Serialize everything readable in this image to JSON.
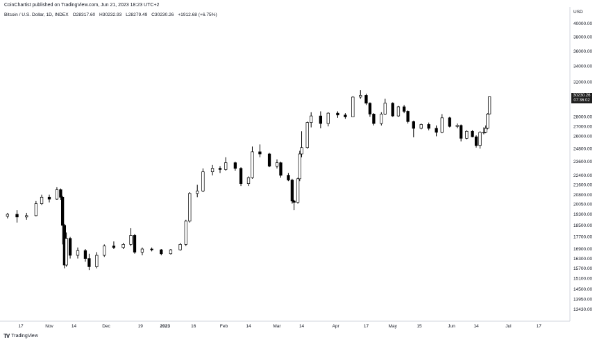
{
  "header": {
    "published": "CoinChartist published on TradingView.com, Jun 21, 2023 18:23 UTC+2",
    "symbol": "Bitcoin / U.S. Dollar, 1D, INDEX",
    "open": "O28317.60",
    "high": "H30232.93",
    "low": "L28279.49",
    "close": "C30230.26",
    "change": "+1912.68 (+6.75%)"
  },
  "currency": "USD",
  "last_price": {
    "price": "30230.26",
    "countdown": "07:36:02"
  },
  "brand": {
    "logo": "TV",
    "name": "TradingView"
  },
  "colors": {
    "candle_up_fill": "#ffffff",
    "candle_down_fill": "#000000",
    "wick": "#000000",
    "axis_text": "#131722",
    "label_bg": "#1e1e1e"
  },
  "chart_data": {
    "type": "candlestick",
    "title": "",
    "xlabel": "",
    "ylabel": "",
    "log_scale": true,
    "ylim": [
      13000,
      41500
    ],
    "y_ticks": [
      "40000.00",
      "38000.00",
      "36000.00",
      "34000.00",
      "32000.00",
      "28000.00",
      "27000.00",
      "26000.00",
      "24800.00",
      "23600.00",
      "22400.00",
      "21600.00",
      "20800.00",
      "20050.00",
      "19300.00",
      "18500.00",
      "17700.00",
      "16900.00",
      "16300.00",
      "15700.00",
      "15100.00",
      "14500.00",
      "13950.00",
      "13430.00"
    ],
    "x_ticks": [
      {
        "label": "17",
        "date": "2022-10-17",
        "bold": false
      },
      {
        "label": "Nov",
        "date": "2022-11-01",
        "bold": false
      },
      {
        "label": "14",
        "date": "2022-11-14",
        "bold": false
      },
      {
        "label": "Dec",
        "date": "2022-12-01",
        "bold": false
      },
      {
        "label": "19",
        "date": "2022-12-19",
        "bold": false
      },
      {
        "label": "2023",
        "date": "2023-01-01",
        "bold": true
      },
      {
        "label": "16",
        "date": "2023-01-16",
        "bold": false
      },
      {
        "label": "Feb",
        "date": "2023-02-01",
        "bold": false
      },
      {
        "label": "14",
        "date": "2023-02-14",
        "bold": false
      },
      {
        "label": "Mar",
        "date": "2023-03-01",
        "bold": false
      },
      {
        "label": "14",
        "date": "2023-03-14",
        "bold": false
      },
      {
        "label": "Apr",
        "date": "2023-04-01",
        "bold": false
      },
      {
        "label": "17",
        "date": "2023-04-17",
        "bold": false
      },
      {
        "label": "May",
        "date": "2023-05-01",
        "bold": false
      },
      {
        "label": "15",
        "date": "2023-05-15",
        "bold": false
      },
      {
        "label": "Jun",
        "date": "2023-06-01",
        "bold": false
      },
      {
        "label": "14",
        "date": "2023-06-14",
        "bold": false
      },
      {
        "label": "Jul",
        "date": "2023-07-01",
        "bold": false
      },
      {
        "label": "17",
        "date": "2023-07-17",
        "bold": false
      }
    ],
    "candles": [
      {
        "date": "2022-10-10",
        "open": 19150,
        "high": 19400,
        "low": 19000,
        "close": 19300
      },
      {
        "date": "2022-10-15",
        "open": 19300,
        "high": 19600,
        "low": 18700,
        "close": 19100
      },
      {
        "date": "2022-10-20",
        "open": 19100,
        "high": 19400,
        "low": 18900,
        "close": 19200
      },
      {
        "date": "2022-10-25",
        "open": 19200,
        "high": 20300,
        "low": 19150,
        "close": 20100
      },
      {
        "date": "2022-10-28",
        "open": 20100,
        "high": 20800,
        "low": 20000,
        "close": 20600
      },
      {
        "date": "2022-11-01",
        "open": 20600,
        "high": 20800,
        "low": 20200,
        "close": 20450
      },
      {
        "date": "2022-11-05",
        "open": 20450,
        "high": 21400,
        "low": 20400,
        "close": 21200
      },
      {
        "date": "2022-11-07",
        "open": 21200,
        "high": 21300,
        "low": 20400,
        "close": 20600
      },
      {
        "date": "2022-11-08",
        "open": 20600,
        "high": 20700,
        "low": 17200,
        "close": 18500
      },
      {
        "date": "2022-11-09",
        "open": 18500,
        "high": 18600,
        "low": 15700,
        "close": 15900
      },
      {
        "date": "2022-11-10",
        "open": 15900,
        "high": 18000,
        "low": 15800,
        "close": 17600
      },
      {
        "date": "2022-11-12",
        "open": 17600,
        "high": 17700,
        "low": 16300,
        "close": 16500
      },
      {
        "date": "2022-11-16",
        "open": 16500,
        "high": 17000,
        "low": 16300,
        "close": 16800
      },
      {
        "date": "2022-11-20",
        "open": 16800,
        "high": 16900,
        "low": 16100,
        "close": 16300
      },
      {
        "date": "2022-11-22",
        "open": 16300,
        "high": 16600,
        "low": 15600,
        "close": 15800
      },
      {
        "date": "2022-11-26",
        "open": 15800,
        "high": 16700,
        "low": 15700,
        "close": 16500
      },
      {
        "date": "2022-11-30",
        "open": 16500,
        "high": 17200,
        "low": 16400,
        "close": 17100
      },
      {
        "date": "2022-12-05",
        "open": 17100,
        "high": 17400,
        "low": 16900,
        "close": 17000
      },
      {
        "date": "2022-12-10",
        "open": 17000,
        "high": 17300,
        "low": 16900,
        "close": 17200
      },
      {
        "date": "2022-12-14",
        "open": 17200,
        "high": 18300,
        "low": 17100,
        "close": 17800
      },
      {
        "date": "2022-12-16",
        "open": 17800,
        "high": 17900,
        "low": 16600,
        "close": 16700
      },
      {
        "date": "2022-12-20",
        "open": 16700,
        "high": 17000,
        "low": 16500,
        "close": 16900
      },
      {
        "date": "2022-12-25",
        "open": 16900,
        "high": 17000,
        "low": 16750,
        "close": 16850
      },
      {
        "date": "2022-12-30",
        "open": 16850,
        "high": 16900,
        "low": 16500,
        "close": 16600
      },
      {
        "date": "2023-01-04",
        "open": 16600,
        "high": 16900,
        "low": 16550,
        "close": 16850
      },
      {
        "date": "2023-01-09",
        "open": 16850,
        "high": 17300,
        "low": 16800,
        "close": 17200
      },
      {
        "date": "2023-01-12",
        "open": 17200,
        "high": 18900,
        "low": 17100,
        "close": 18800
      },
      {
        "date": "2023-01-14",
        "open": 18800,
        "high": 21000,
        "low": 18700,
        "close": 20900
      },
      {
        "date": "2023-01-18",
        "open": 20900,
        "high": 21600,
        "low": 20600,
        "close": 21100
      },
      {
        "date": "2023-01-21",
        "open": 21100,
        "high": 23000,
        "low": 21000,
        "close": 22700
      },
      {
        "date": "2023-01-26",
        "open": 22700,
        "high": 23300,
        "low": 22400,
        "close": 23000
      },
      {
        "date": "2023-01-30",
        "open": 23000,
        "high": 23200,
        "low": 22600,
        "close": 22900
      },
      {
        "date": "2023-02-02",
        "open": 22900,
        "high": 24000,
        "low": 22800,
        "close": 23500
      },
      {
        "date": "2023-02-07",
        "open": 23500,
        "high": 23600,
        "low": 22800,
        "close": 23000
      },
      {
        "date": "2023-02-10",
        "open": 23000,
        "high": 23100,
        "low": 21500,
        "close": 21700
      },
      {
        "date": "2023-02-14",
        "open": 21700,
        "high": 22300,
        "low": 21500,
        "close": 22200
      },
      {
        "date": "2023-02-16",
        "open": 22200,
        "high": 25000,
        "low": 22100,
        "close": 24500
      },
      {
        "date": "2023-02-20",
        "open": 24500,
        "high": 25200,
        "low": 24000,
        "close": 24300
      },
      {
        "date": "2023-02-25",
        "open": 24300,
        "high": 24400,
        "low": 23100,
        "close": 23200
      },
      {
        "date": "2023-03-01",
        "open": 23200,
        "high": 23800,
        "low": 23000,
        "close": 23500
      },
      {
        "date": "2023-03-03",
        "open": 23500,
        "high": 23600,
        "low": 22200,
        "close": 22400
      },
      {
        "date": "2023-03-07",
        "open": 22400,
        "high": 22600,
        "low": 21900,
        "close": 22000
      },
      {
        "date": "2023-03-09",
        "open": 22000,
        "high": 22100,
        "low": 20100,
        "close": 20300
      },
      {
        "date": "2023-03-10",
        "open": 20300,
        "high": 20400,
        "low": 19600,
        "close": 20200
      },
      {
        "date": "2023-03-12",
        "open": 20200,
        "high": 22200,
        "low": 20100,
        "close": 22100
      },
      {
        "date": "2023-03-13",
        "open": 22100,
        "high": 24600,
        "low": 21900,
        "close": 24300
      },
      {
        "date": "2023-03-14",
        "open": 24300,
        "high": 26500,
        "low": 24000,
        "close": 24900
      },
      {
        "date": "2023-03-17",
        "open": 24900,
        "high": 27500,
        "low": 24800,
        "close": 27400
      },
      {
        "date": "2023-03-19",
        "open": 27400,
        "high": 28500,
        "low": 26900,
        "close": 28100
      },
      {
        "date": "2023-03-24",
        "open": 28100,
        "high": 28600,
        "low": 26800,
        "close": 27300
      },
      {
        "date": "2023-03-28",
        "open": 27300,
        "high": 28500,
        "low": 27000,
        "close": 28400
      },
      {
        "date": "2023-04-02",
        "open": 28400,
        "high": 28600,
        "low": 27900,
        "close": 28200
      },
      {
        "date": "2023-04-06",
        "open": 28200,
        "high": 28400,
        "low": 27800,
        "close": 28000
      },
      {
        "date": "2023-04-10",
        "open": 28000,
        "high": 30300,
        "low": 28000,
        "close": 30200
      },
      {
        "date": "2023-04-14",
        "open": 30200,
        "high": 31000,
        "low": 30000,
        "close": 30400
      },
      {
        "date": "2023-04-17",
        "open": 30400,
        "high": 30600,
        "low": 29300,
        "close": 29500
      },
      {
        "date": "2023-04-19",
        "open": 29500,
        "high": 29600,
        "low": 28000,
        "close": 28300
      },
      {
        "date": "2023-04-21",
        "open": 28300,
        "high": 28400,
        "low": 27100,
        "close": 27300
      },
      {
        "date": "2023-04-25",
        "open": 27300,
        "high": 28500,
        "low": 27100,
        "close": 28300
      },
      {
        "date": "2023-04-27",
        "open": 28300,
        "high": 30000,
        "low": 28200,
        "close": 29500
      },
      {
        "date": "2023-05-01",
        "open": 29500,
        "high": 29600,
        "low": 28000,
        "close": 28100
      },
      {
        "date": "2023-05-04",
        "open": 28100,
        "high": 29200,
        "low": 28000,
        "close": 29100
      },
      {
        "date": "2023-05-07",
        "open": 29100,
        "high": 29300,
        "low": 28400,
        "close": 28600
      },
      {
        "date": "2023-05-09",
        "open": 28600,
        "high": 28700,
        "low": 27300,
        "close": 27500
      },
      {
        "date": "2023-05-12",
        "open": 27500,
        "high": 27600,
        "low": 25900,
        "close": 26800
      },
      {
        "date": "2023-05-16",
        "open": 26800,
        "high": 27300,
        "low": 26700,
        "close": 27200
      },
      {
        "date": "2023-05-20",
        "open": 27200,
        "high": 27400,
        "low": 26600,
        "close": 26800
      },
      {
        "date": "2023-05-24",
        "open": 26800,
        "high": 27100,
        "low": 26000,
        "close": 26400
      },
      {
        "date": "2023-05-27",
        "open": 26400,
        "high": 28300,
        "low": 26300,
        "close": 27900
      },
      {
        "date": "2023-05-31",
        "open": 27900,
        "high": 28000,
        "low": 26900,
        "close": 27000
      },
      {
        "date": "2023-06-04",
        "open": 27000,
        "high": 27300,
        "low": 26800,
        "close": 27100
      },
      {
        "date": "2023-06-06",
        "open": 27100,
        "high": 27200,
        "low": 25500,
        "close": 25800
      },
      {
        "date": "2023-06-09",
        "open": 25800,
        "high": 26600,
        "low": 25700,
        "close": 26500
      },
      {
        "date": "2023-06-12",
        "open": 26500,
        "high": 26600,
        "low": 25900,
        "close": 25950
      },
      {
        "date": "2023-06-14",
        "open": 25950,
        "high": 26100,
        "low": 24900,
        "close": 25100
      },
      {
        "date": "2023-06-16",
        "open": 25100,
        "high": 26500,
        "low": 24800,
        "close": 26400
      },
      {
        "date": "2023-06-18",
        "open": 26400,
        "high": 26900,
        "low": 26200,
        "close": 26400
      },
      {
        "date": "2023-06-19",
        "open": 26400,
        "high": 27100,
        "low": 26300,
        "close": 26800
      },
      {
        "date": "2023-06-20",
        "open": 26800,
        "high": 28400,
        "low": 26700,
        "close": 28300
      },
      {
        "date": "2023-06-21",
        "open": 28317.6,
        "high": 30232.93,
        "low": 28279.49,
        "close": 30230.26
      }
    ]
  }
}
